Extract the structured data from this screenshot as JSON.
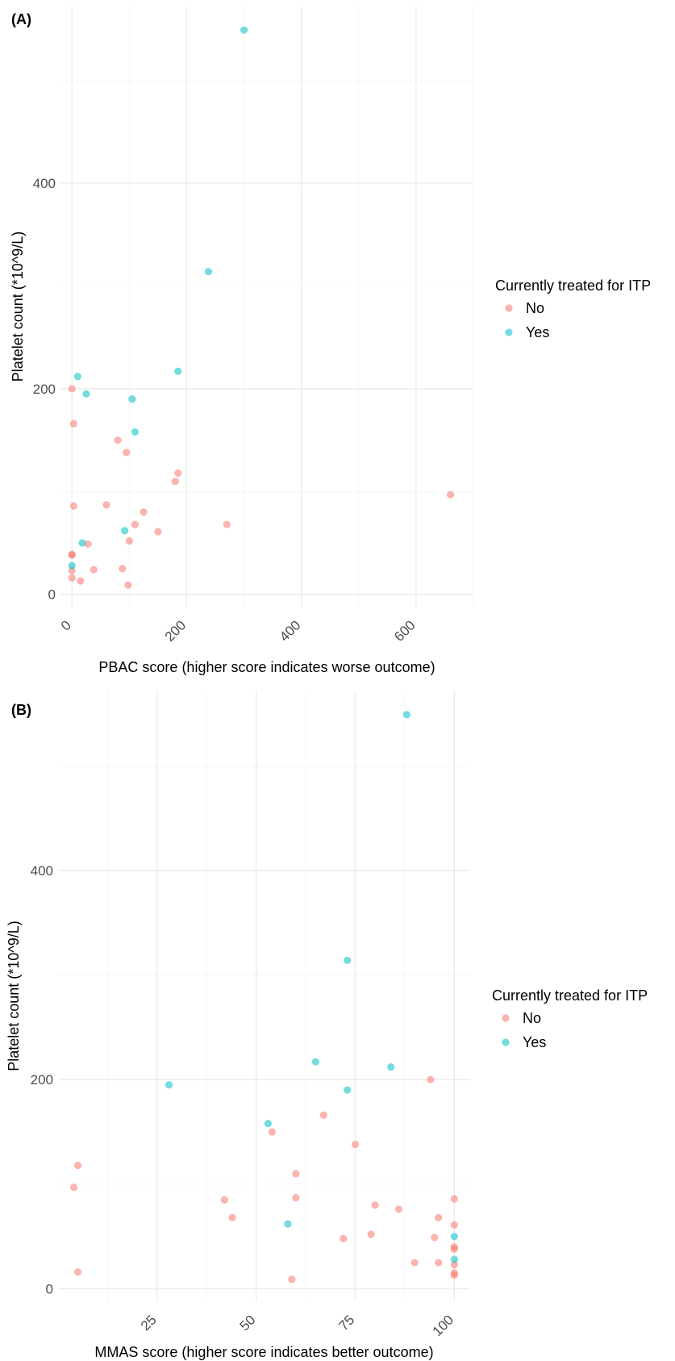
{
  "chart_data": [
    {
      "type": "scatter",
      "panel": "(A)",
      "title": "",
      "xlabel": "PBAC score (higher score indicates worse outcome)",
      "ylabel": "Platelet count (*10^9/L)",
      "xlim": [
        -20,
        700
      ],
      "ylim": [
        -12,
        572
      ],
      "x_ticks": [
        0,
        200,
        400,
        600
      ],
      "x_tick_labels": [
        "0",
        "200",
        "400",
        "600"
      ],
      "y_ticks": [
        0,
        200,
        400
      ],
      "y_tick_labels": [
        "0",
        "200",
        "400"
      ],
      "grid": true,
      "legend_title": "Currently treated for ITP",
      "legend_position": "right",
      "series": [
        {
          "name": "No",
          "color": "#F8766D",
          "points": [
            [
              0,
              200
            ],
            [
              3,
              166
            ],
            [
              80,
              150
            ],
            [
              95,
              138
            ],
            [
              185,
              118
            ],
            [
              180,
              110
            ],
            [
              3,
              86
            ],
            [
              60,
              87
            ],
            [
              125,
              80
            ],
            [
              660,
              97
            ],
            [
              110,
              68
            ],
            [
              270,
              68
            ],
            [
              150,
              61
            ],
            [
              100,
              52
            ],
            [
              28,
              49
            ],
            [
              0,
              39
            ],
            [
              0,
              38
            ],
            [
              0,
              23
            ],
            [
              38,
              24
            ],
            [
              88,
              25
            ],
            [
              0,
              16
            ],
            [
              15,
              13
            ],
            [
              98,
              9
            ]
          ]
        },
        {
          "name": "Yes",
          "color": "#00BFC4",
          "points": [
            [
              300,
              549
            ],
            [
              238,
              314
            ],
            [
              10,
              212
            ],
            [
              185,
              217
            ],
            [
              25,
              195
            ],
            [
              105,
              190
            ],
            [
              110,
              158
            ],
            [
              92,
              62
            ],
            [
              18,
              50
            ],
            [
              0,
              28
            ]
          ]
        }
      ]
    },
    {
      "type": "scatter",
      "panel": "(B)",
      "title": "",
      "xlabel": "MMAS score (higher score indicates better outcome)",
      "ylabel": "Platelet count (*10^9/L)",
      "xlim": [
        0,
        104
      ],
      "ylim": [
        -12,
        572
      ],
      "x_ticks": [
        25,
        50,
        75,
        100
      ],
      "x_tick_labels": [
        "25",
        "50",
        "75",
        "100"
      ],
      "y_ticks": [
        0,
        200,
        400
      ],
      "y_tick_labels": [
        "0",
        "200",
        "400"
      ],
      "grid": true,
      "legend_title": "Currently treated for ITP",
      "legend_position": "right",
      "series": [
        {
          "name": "No",
          "color": "#F8766D",
          "points": [
            [
              94,
              200
            ],
            [
              67,
              166
            ],
            [
              54,
              150
            ],
            [
              75,
              138
            ],
            [
              5,
              118
            ],
            [
              60,
              110
            ],
            [
              4,
              97
            ],
            [
              42,
              85
            ],
            [
              60,
              87
            ],
            [
              80,
              80
            ],
            [
              86,
              76
            ],
            [
              100,
              86
            ],
            [
              44,
              68
            ],
            [
              96,
              68
            ],
            [
              100,
              61
            ],
            [
              79,
              52
            ],
            [
              95,
              49
            ],
            [
              72,
              48
            ],
            [
              100,
              40
            ],
            [
              100,
              38
            ],
            [
              90,
              25
            ],
            [
              96,
              25
            ],
            [
              100,
              23
            ],
            [
              5,
              16
            ],
            [
              100,
              15
            ],
            [
              100,
              13
            ],
            [
              59,
              9
            ]
          ]
        },
        {
          "name": "Yes",
          "color": "#00BFC4",
          "points": [
            [
              88,
              549
            ],
            [
              73,
              314
            ],
            [
              65,
              217
            ],
            [
              84,
              212
            ],
            [
              28,
              195
            ],
            [
              73,
              190
            ],
            [
              53,
              158
            ],
            [
              58,
              62
            ],
            [
              100,
              50
            ],
            [
              100,
              28
            ]
          ]
        }
      ]
    }
  ]
}
